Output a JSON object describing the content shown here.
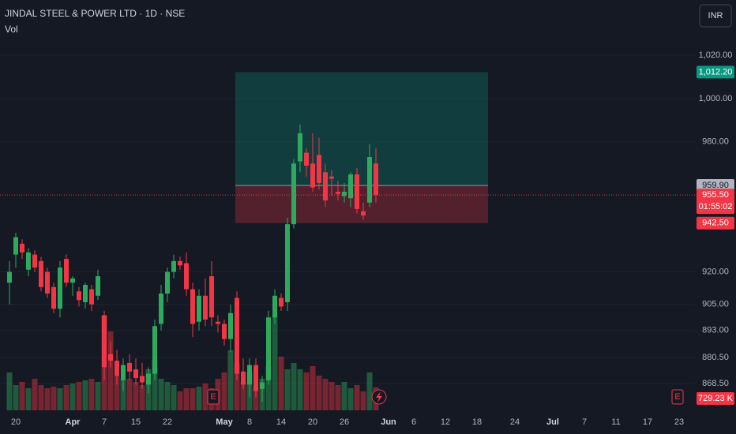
{
  "chart_data": {
    "type": "candlestick",
    "title": "JINDAL STEEL & POWER LTD · 1D · NSE",
    "volume_label": "Vol",
    "currency": "INR",
    "up_color": "#2eaa5e",
    "down_color": "#f23645",
    "categories": [
      null,
      "20",
      null,
      null,
      null,
      null,
      null,
      null,
      null,
      null,
      "Apr",
      null,
      null,
      null,
      null,
      "7",
      null,
      null,
      null,
      null,
      "15",
      null,
      null,
      null,
      null,
      "22",
      null,
      null,
      null,
      null,
      null,
      null,
      null,
      null,
      "May",
      null,
      null,
      null,
      "8",
      null,
      null,
      null,
      null,
      "14",
      null,
      null,
      null,
      null,
      "20",
      null,
      null,
      null,
      null,
      "26",
      null,
      null,
      null,
      null,
      null,
      null,
      "Jun",
      null,
      null,
      null,
      "6",
      null,
      null,
      null,
      null,
      "12",
      null,
      null,
      null,
      null,
      "18",
      null,
      null,
      null,
      null,
      null,
      "24",
      null,
      null,
      null,
      null,
      null,
      "Jul",
      null,
      null,
      null,
      null,
      "7",
      null,
      null,
      null,
      null,
      "11",
      null,
      null,
      null,
      null,
      "17",
      null,
      null,
      null,
      null,
      "23",
      null
    ],
    "open": [
      915,
      928,
      933,
      921,
      928,
      925,
      920,
      913,
      903,
      926,
      915,
      911,
      906,
      912,
      909,
      900,
      882,
      879,
      870,
      878,
      875,
      872,
      868,
      873,
      896,
      910,
      920,
      925,
      924,
      912,
      897,
      909,
      918,
      897,
      896,
      889,
      908,
      874,
      868,
      877,
      866,
      870,
      899,
      908,
      906,
      942,
      971,
      975,
      970,
      974,
      966,
      964,
      957,
      955,
      954,
      965,
      948,
      952,
      970,
      null,
      null,
      null,
      null,
      null,
      null,
      null,
      null,
      null,
      null,
      null,
      null,
      null,
      null,
      null,
      null,
      null,
      null,
      null,
      null,
      null,
      null,
      null,
      null,
      null,
      null,
      null,
      null,
      null,
      null,
      null,
      null,
      null,
      null,
      null,
      null,
      null,
      null,
      null,
      null,
      null,
      null,
      null,
      null,
      null,
      null,
      null,
      null,
      null
    ],
    "high": [
      925,
      938,
      935,
      931,
      930,
      927,
      922,
      915,
      925,
      928,
      918,
      913,
      915,
      914,
      921,
      902,
      888,
      884,
      880,
      882,
      880,
      878,
      876,
      898,
      914,
      922,
      928,
      927,
      929,
      915,
      912,
      917,
      925,
      900,
      898,
      905,
      911,
      880,
      880,
      880,
      872,
      902,
      912,
      910,
      945,
      972,
      988,
      977,
      984,
      982,
      970,
      967,
      962,
      961,
      966,
      968,
      952,
      979,
      977,
      null,
      null,
      null,
      null,
      null,
      null,
      null,
      null,
      null,
      null,
      null,
      null,
      null,
      null,
      null,
      null,
      null,
      null,
      null,
      null,
      null,
      null,
      null,
      null,
      null,
      null,
      null,
      null,
      null,
      null,
      null,
      null,
      null,
      null,
      null,
      null,
      null,
      null,
      null,
      null,
      null,
      null,
      null,
      null,
      null,
      null,
      null,
      null,
      null
    ],
    "low": [
      905,
      922,
      926,
      918,
      920,
      911,
      908,
      901,
      899,
      913,
      909,
      904,
      903,
      902,
      907,
      870,
      876,
      868,
      865,
      870,
      868,
      866,
      864,
      870,
      893,
      906,
      917,
      921,
      909,
      890,
      893,
      895,
      895,
      892,
      886,
      883,
      870,
      866,
      862,
      862,
      860,
      868,
      896,
      902,
      902,
      940,
      966,
      964,
      957,
      958,
      950,
      955,
      953,
      952,
      950,
      947,
      944,
      950,
      952,
      null,
      null,
      null,
      null,
      null,
      null,
      null,
      null,
      null,
      null,
      null,
      null,
      null,
      null,
      null,
      null,
      null,
      null,
      null,
      null,
      null,
      null,
      null,
      null,
      null,
      null,
      null,
      null,
      null,
      null,
      null,
      null,
      null,
      null,
      null,
      null,
      null,
      null,
      null,
      null,
      null,
      null,
      null,
      null,
      null,
      null,
      null,
      null,
      null
    ],
    "close": [
      920,
      936,
      929,
      929,
      922,
      913,
      910,
      903,
      922,
      915,
      917,
      907,
      914,
      905,
      918,
      876,
      879,
      872,
      877,
      874,
      871,
      869,
      873,
      895,
      910,
      920,
      925,
      923,
      912,
      896,
      909,
      898,
      899,
      896,
      889,
      901,
      873,
      868,
      877,
      865,
      869,
      899,
      909,
      904,
      942,
      970,
      984,
      969,
      959,
      961,
      953,
      963,
      956,
      957,
      965,
      949,
      946,
      973,
      955.5,
      null,
      null,
      null,
      null,
      null,
      null,
      null,
      null,
      null,
      null,
      null,
      null,
      null,
      null,
      null,
      null,
      null,
      null,
      null,
      null,
      null,
      null,
      null,
      null,
      null,
      null,
      null,
      null,
      null,
      null,
      null,
      null,
      null,
      null,
      null,
      null,
      null,
      null,
      null,
      null,
      null,
      null,
      null,
      null,
      null,
      null,
      null,
      null,
      null
    ],
    "volume": [
      1200,
      800,
      900,
      700,
      1000,
      800,
      700,
      750,
      700,
      800,
      850,
      900,
      950,
      1000,
      900,
      3000,
      2500,
      1100,
      1000,
      1000,
      900,
      800,
      1300,
      1600,
      1000,
      900,
      800,
      600,
      700,
      700,
      750,
      850,
      700,
      1000,
      1200,
      1900,
      1500,
      900,
      1200,
      700,
      1000,
      1400,
      3000,
      1700,
      1300,
      1500,
      1300,
      1200,
      1400,
      1100,
      1000,
      900,
      800,
      900,
      700,
      800,
      600,
      1200,
      729.23,
      null,
      null,
      null,
      null,
      null,
      null,
      null,
      null,
      null,
      null,
      null,
      null,
      null,
      null,
      null,
      null,
      null,
      null,
      null,
      null,
      null,
      null,
      null,
      null,
      null,
      null,
      null,
      null,
      null,
      null,
      null,
      null,
      null,
      null,
      null,
      null,
      null,
      null,
      null,
      null,
      null,
      null,
      null,
      null,
      null,
      null,
      null,
      null,
      null
    ],
    "volume_lim": [
      0,
      4000
    ],
    "last_volume_label": "729.23 K",
    "ylim": [
      856.1,
      1045.5
    ],
    "yticks": [
      {
        "value": 868.5,
        "label": "868.50"
      },
      {
        "value": 880.5,
        "label": "880.50"
      },
      {
        "value": 893,
        "label": "893.00"
      },
      {
        "value": 905,
        "label": "905.00"
      },
      {
        "value": 920,
        "label": "920.00"
      },
      {
        "value": 980,
        "label": "980.00"
      },
      {
        "value": 1000,
        "label": "1,000.00"
      },
      {
        "value": 1020,
        "label": "1,020.00"
      }
    ],
    "position": {
      "target": {
        "value": 1012.2,
        "label": "1,012.20"
      },
      "entry": {
        "value": 959.9,
        "label": "959.90"
      },
      "stop": {
        "value": 942.5,
        "label": "942.50"
      }
    },
    "last_price": {
      "value": 955.5,
      "label": "955.50"
    },
    "countdown": "01:55:02",
    "earnings_markers": [
      "E",
      "E"
    ]
  }
}
